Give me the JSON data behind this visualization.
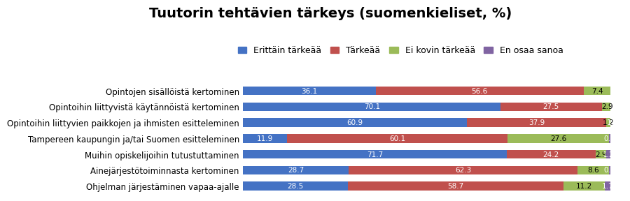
{
  "title": "Tuutorin tehtävien tärkeys (suomenkieliset, %)",
  "categories": [
    "Opintojen sisällöistä kertominen",
    "Opintoihin liittyvistä käytännöistä kertominen",
    "Opintoihin liittyvien paikkojen ja ihmisten esitteleminen",
    "Tampereen kaupungin ja/tai Suomen esitteleminen",
    "Muihin opiskelijoihin tutustuttaminen",
    "Ainejärjestötoiminnasta kertominen",
    "Ohjelman järjestäminen vapaa-ajalle"
  ],
  "series": {
    "Erittäin tärkeää": [
      36.1,
      70.1,
      60.9,
      11.9,
      71.7,
      28.7,
      28.5
    ],
    "Tärkeää": [
      56.6,
      27.5,
      37.9,
      60.1,
      24.2,
      62.3,
      58.7
    ],
    "Ei kovin tärkeää": [
      7.4,
      2.9,
      1.2,
      27.6,
      2.9,
      8.6,
      11.2
    ],
    "En osaa sanoa": [
      0.0,
      2.9,
      1.2,
      0.4,
      1.2,
      0.4,
      1.7
    ]
  },
  "colors": {
    "Erittäin tärkeää": "#4472C4",
    "Tärkeää": "#C0504D",
    "Ei kovin tärkeää": "#9BBB59",
    "En osaa sanoa": "#8064A2"
  },
  "bar_height": 0.55,
  "xlim": [
    0,
    100
  ],
  "title_fontsize": 14,
  "legend_fontsize": 9,
  "tick_fontsize": 8.5,
  "value_fontsize": 7.5,
  "label_color_white": [
    "Erittäin tärkeää",
    "Tärkeää",
    "En osaa sanoa"
  ],
  "label_color_dark": [
    "Ei kovin tärkeää"
  ]
}
